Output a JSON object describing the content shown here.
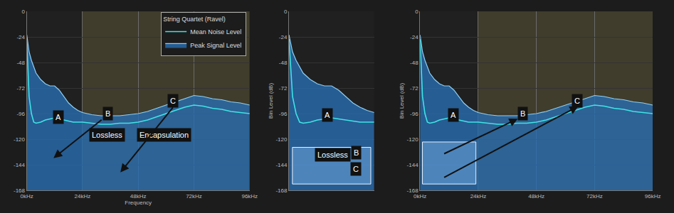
{
  "chart_data": [
    {
      "type": "area",
      "xlabel": "Frequency",
      "legend": "top right",
      "legend_title": "String Quartet (Ravel)",
      "grid": true,
      "x": [
        0,
        1,
        2,
        3,
        4,
        6,
        8,
        10,
        12,
        14,
        16,
        18,
        20,
        22,
        24,
        28,
        32,
        36,
        40,
        44,
        48,
        52,
        56,
        60,
        64,
        68,
        72,
        76,
        80,
        84,
        88,
        92,
        96
      ],
      "series": [
        {
          "name": "Peak Signal Level",
          "color": "#8fd0f5",
          "values": [
            -22,
            -38,
            -46,
            -52,
            -58,
            -64,
            -68,
            -70,
            -70,
            -74,
            -80,
            -86,
            -90,
            -93,
            -95,
            -97,
            -98,
            -98,
            -98,
            -97,
            -96,
            -94,
            -91,
            -88,
            -85,
            -82,
            -79,
            -80,
            -82,
            -83,
            -85,
            -86,
            -88
          ]
        },
        {
          "name": "Mean Noise Level",
          "color": "#3fe3e6",
          "values": [
            -26,
            -80,
            -96,
            -104,
            -105,
            -104,
            -102,
            -101,
            -100,
            -101,
            -102,
            -103,
            -104,
            -104,
            -104,
            -105,
            -106,
            -106,
            -105,
            -105,
            -104,
            -102,
            -99,
            -96,
            -93,
            -90,
            -88,
            -89,
            -91,
            -92,
            -94,
            -95,
            -96
          ]
        }
      ],
      "xlim": [
        0,
        96
      ],
      "xticks": [
        {
          "value": 0,
          "label": "0kHz"
        },
        {
          "value": 24,
          "label": "24kHz"
        },
        {
          "value": 48,
          "label": "48kHz"
        },
        {
          "value": 72,
          "label": "72kHz"
        },
        {
          "value": 96,
          "label": "96kHz"
        }
      ],
      "ylim": [
        -168,
        0
      ],
      "yticks": [
        0,
        -24,
        -48,
        -72,
        -96,
        -120,
        -144,
        -168
      ],
      "annotations": [
        "A",
        "B",
        "C",
        "Lossless",
        "Encapsulation"
      ]
    },
    {
      "type": "area",
      "ylabel": "Bin Level (dB)",
      "grid": true,
      "tick_labels": "y",
      "x": [
        0,
        1,
        2,
        3,
        4,
        6,
        8,
        10,
        12,
        14,
        16,
        18,
        20,
        22,
        24
      ],
      "series": [
        {
          "name": "Peak Signal Level",
          "color": "#8fd0f5",
          "values": [
            -22,
            -38,
            -46,
            -52,
            -58,
            -64,
            -68,
            -70,
            -70,
            -74,
            -80,
            -86,
            -90,
            -93,
            -95
          ]
        },
        {
          "name": "Mean Noise Level",
          "color": "#3fe3e6",
          "values": [
            -26,
            -80,
            -96,
            -104,
            -105,
            -104,
            -102,
            -101,
            -100,
            -101,
            -102,
            -103,
            -104,
            -104,
            -104
          ]
        }
      ],
      "xlim": [
        0,
        24
      ],
      "xticks": [
        0,
        24
      ],
      "ylim": [
        -168,
        0
      ],
      "yticks": [
        0,
        -24,
        -48,
        -72,
        -96,
        -120,
        -144,
        -168
      ],
      "annotations": [
        "A",
        "Lossless",
        "B",
        "C"
      ]
    },
    {
      "type": "area",
      "ylabel": "Bin Level (dB)",
      "grid": true,
      "x": [
        0,
        1,
        2,
        3,
        4,
        6,
        8,
        10,
        12,
        14,
        16,
        18,
        20,
        22,
        24,
        28,
        32,
        36,
        40,
        44,
        48,
        52,
        56,
        60,
        64,
        68,
        72,
        76,
        80,
        84,
        88,
        92,
        96
      ],
      "series": [
        {
          "name": "Peak Signal Level",
          "color": "#8fd0f5",
          "values": [
            -22,
            -38,
            -46,
            -52,
            -58,
            -64,
            -68,
            -70,
            -70,
            -74,
            -80,
            -86,
            -90,
            -93,
            -95,
            -97,
            -98,
            -98,
            -98,
            -97,
            -96,
            -94,
            -91,
            -88,
            -85,
            -82,
            -79,
            -80,
            -82,
            -83,
            -85,
            -86,
            -88
          ]
        },
        {
          "name": "Mean Noise Level",
          "color": "#3fe3e6",
          "values": [
            -26,
            -80,
            -96,
            -104,
            -105,
            -104,
            -102,
            -101,
            -100,
            -101,
            -102,
            -103,
            -104,
            -104,
            -104,
            -105,
            -106,
            -106,
            -105,
            -105,
            -104,
            -102,
            -99,
            -96,
            -93,
            -90,
            -88,
            -89,
            -91,
            -92,
            -94,
            -95,
            -96
          ]
        }
      ],
      "xlim": [
        0,
        96
      ],
      "xticks": [
        {
          "value": 0,
          "label": "0kHz"
        },
        {
          "value": 24,
          "label": "24kHz"
        },
        {
          "value": 48,
          "label": "48kHz"
        },
        {
          "value": 72,
          "label": "72kHz"
        },
        {
          "value": 96,
          "label": "96kHz"
        }
      ],
      "ylim": [
        -168,
        0
      ],
      "yticks": [
        0,
        -24,
        -48,
        -72,
        -96,
        -120,
        -144,
        -168
      ],
      "annotations": [
        "A",
        "B",
        "C"
      ]
    }
  ]
}
